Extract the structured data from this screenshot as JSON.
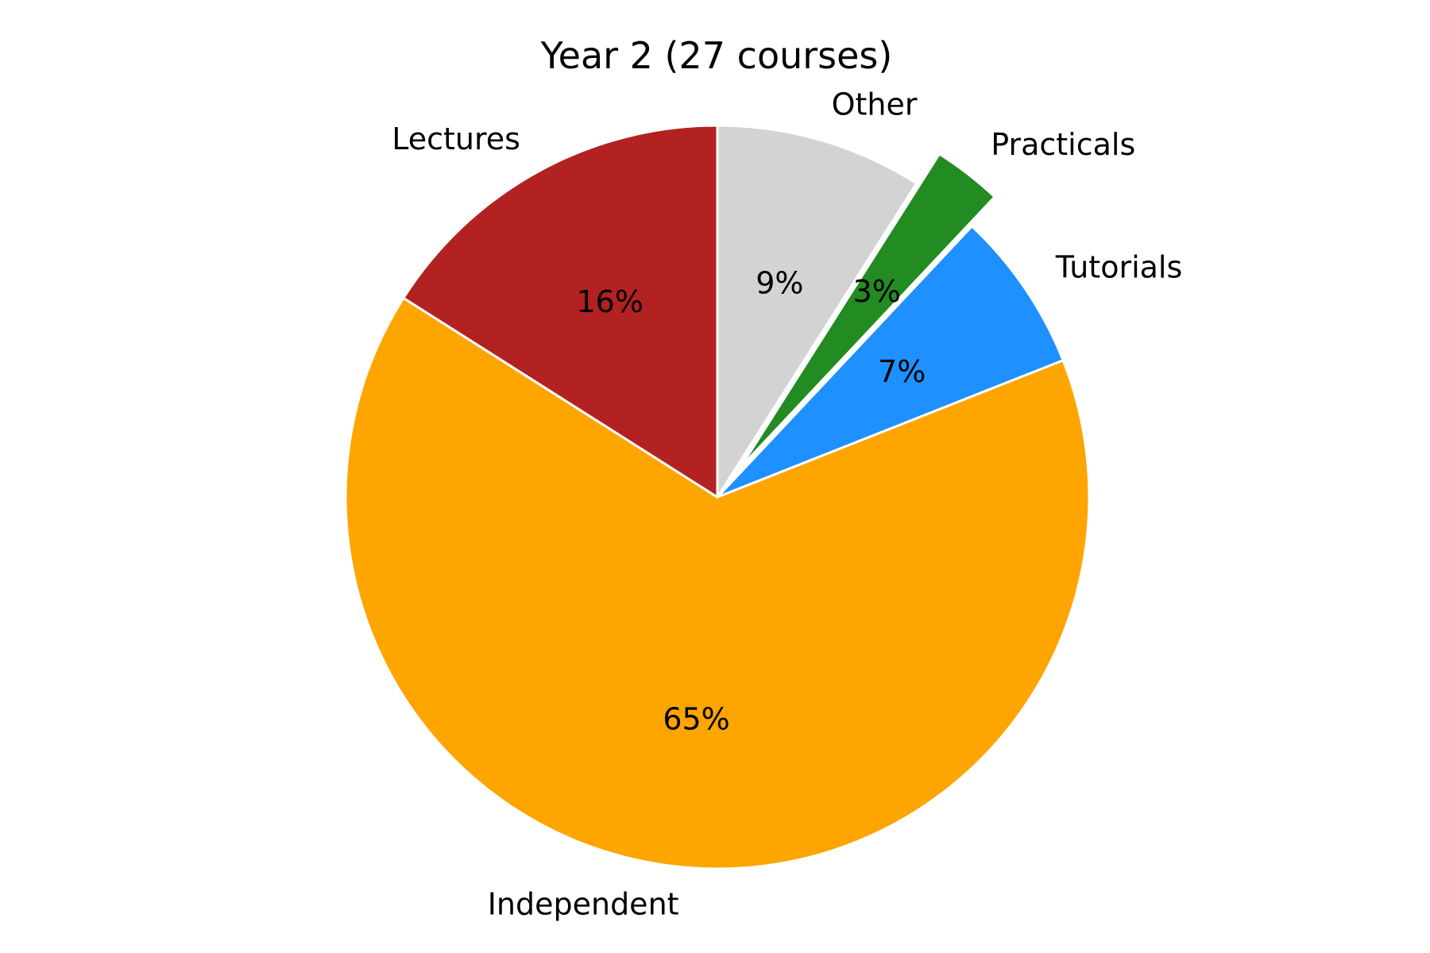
{
  "chart_data": {
    "type": "pie",
    "title": "Year 2 (27 courses)",
    "start_angle_deg": 90,
    "direction": "clockwise",
    "slices": [
      {
        "label": "Other",
        "value": 9,
        "pct_label": "9%",
        "color": "#d3d3d3",
        "exploded": false
      },
      {
        "label": "Practicals",
        "value": 3,
        "pct_label": "3%",
        "color": "#228b22",
        "exploded": true
      },
      {
        "label": "Tutorials",
        "value": 7,
        "pct_label": "7%",
        "color": "#1e90ff",
        "exploded": false
      },
      {
        "label": "Independent",
        "value": 65,
        "pct_label": "65%",
        "color": "#ffa500",
        "exploded": false
      },
      {
        "label": "Lectures",
        "value": 16,
        "pct_label": "16%",
        "color": "#b22222",
        "exploded": false
      }
    ]
  }
}
